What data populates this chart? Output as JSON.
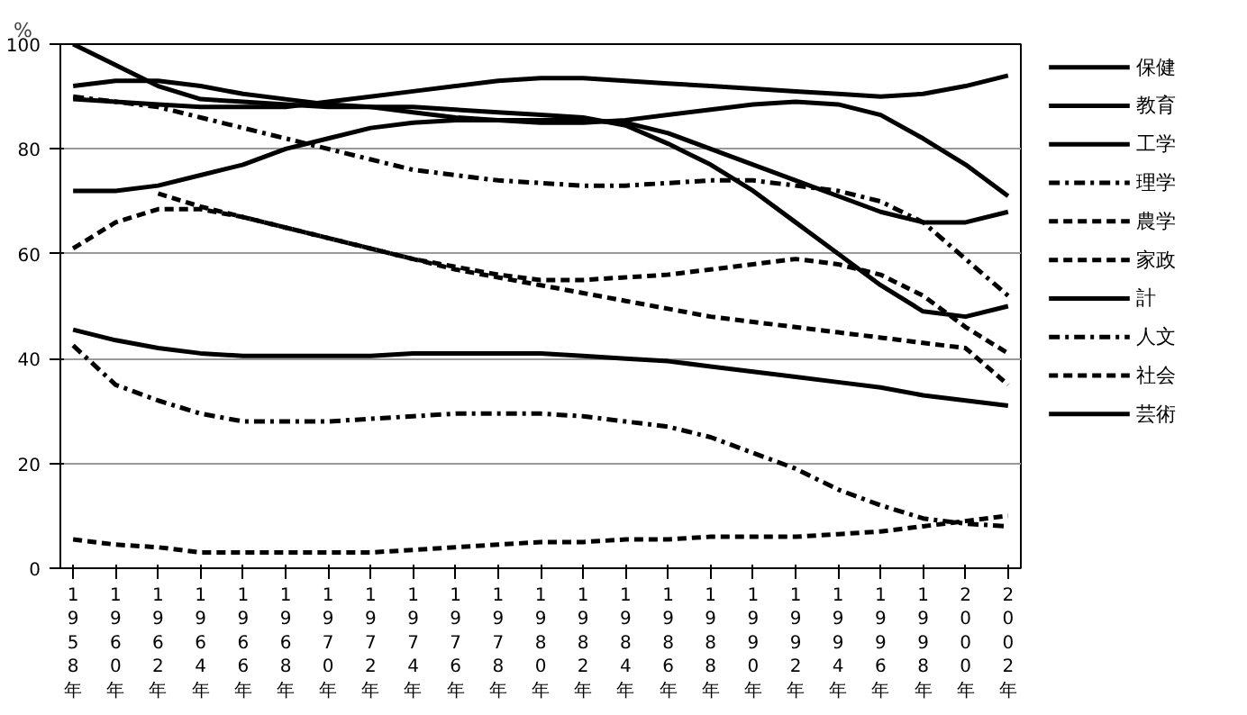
{
  "chart_data": {
    "type": "line",
    "ylabel": "%",
    "categories": [
      "1958年",
      "1960年",
      "1962年",
      "1964年",
      "1966年",
      "1968年",
      "1970年",
      "1972年",
      "1974年",
      "1976年",
      "1978年",
      "1980年",
      "1982年",
      "1984年",
      "1986年",
      "1988年",
      "1990年",
      "1992年",
      "1994年",
      "1996年",
      "1998年",
      "2000年",
      "2002年"
    ],
    "ylim": [
      0,
      100
    ],
    "yticks": [
      0,
      20,
      40,
      60,
      80,
      100
    ],
    "grid": "y",
    "legend": "right",
    "marker": "none",
    "series": [
      {
        "name": "保健",
        "color": "#000000",
        "line_style": "solid",
        "values": [
          89.5,
          89,
          88.5,
          88,
          88,
          88,
          89,
          90,
          91,
          92,
          93,
          93.5,
          93.5,
          93,
          92.5,
          92,
          91.5,
          91,
          90.5,
          90,
          90.5,
          92,
          94
        ]
      },
      {
        "name": "教育",
        "color": "#000000",
        "line_style": "solid",
        "values": [
          72,
          72,
          73,
          75,
          77,
          80,
          82,
          84,
          85,
          85.5,
          85.5,
          85.5,
          85.5,
          85,
          83,
          80,
          77,
          74,
          71,
          68,
          66,
          66,
          68
        ]
      },
      {
        "name": "工学",
        "color": "#000000",
        "line_style": "solid",
        "values": [
          92,
          93,
          93,
          92,
          90.5,
          89.5,
          88.5,
          88,
          87,
          86,
          85.5,
          85,
          85,
          85.5,
          86.5,
          87.5,
          88.5,
          89,
          88.5,
          86.5,
          82,
          77,
          71
        ]
      },
      {
        "name": "理学",
        "color": "#000000",
        "line_style": "dashdot",
        "values": [
          90,
          89,
          88,
          86,
          84,
          82,
          80,
          78,
          76,
          75,
          74,
          73.5,
          73,
          73,
          73.5,
          74,
          74,
          73,
          72,
          70,
          66,
          59,
          52
        ]
      },
      {
        "name": "農学",
        "color": "#000000",
        "line_style": "dashed",
        "values": [
          61,
          66,
          68.5,
          68.5,
          67,
          65,
          63,
          61,
          59,
          57.5,
          56,
          55,
          55,
          55.5,
          56,
          57,
          58,
          59,
          58,
          56,
          52,
          46,
          41
        ]
      },
      {
        "name": "家政",
        "color": "#000000",
        "line_style": "dashed",
        "values": [
          null,
          null,
          71.5,
          69,
          67,
          65,
          63,
          61,
          59,
          57,
          55.5,
          54,
          52.5,
          51,
          49.5,
          48,
          47,
          46,
          45,
          44,
          43,
          42,
          35
        ]
      },
      {
        "name": "計",
        "color": "#000000",
        "line_style": "solid",
        "values": [
          45.5,
          43.5,
          42,
          41,
          40.5,
          40.5,
          40.5,
          40.5,
          41,
          41,
          41,
          41,
          40.5,
          40,
          39.5,
          38.5,
          37.5,
          36.5,
          35.5,
          34.5,
          33,
          32,
          31
        ]
      },
      {
        "name": "人文",
        "color": "#000000",
        "line_style": "dashdot",
        "values": [
          42.5,
          35,
          32,
          29.5,
          28,
          28,
          28,
          28.5,
          29,
          29.5,
          29.5,
          29.5,
          29,
          28,
          27,
          25,
          22,
          19,
          15,
          12,
          9.5,
          8.5,
          8
        ]
      },
      {
        "name": "社会",
        "color": "#000000",
        "line_style": "dashed",
        "values": [
          5.5,
          4.5,
          4,
          3,
          3,
          3,
          3,
          3,
          3.5,
          4,
          4.5,
          5,
          5,
          5.5,
          5.5,
          6,
          6,
          6,
          6.5,
          7,
          8,
          9,
          10
        ]
      },
      {
        "name": "芸術",
        "color": "#000000",
        "line_style": "solid",
        "values": [
          100,
          96,
          92,
          89.5,
          89,
          88.5,
          88,
          88,
          88,
          87.5,
          87,
          86.5,
          86,
          84.5,
          81,
          77,
          72,
          66,
          60,
          54,
          49,
          48,
          50
        ]
      }
    ]
  }
}
